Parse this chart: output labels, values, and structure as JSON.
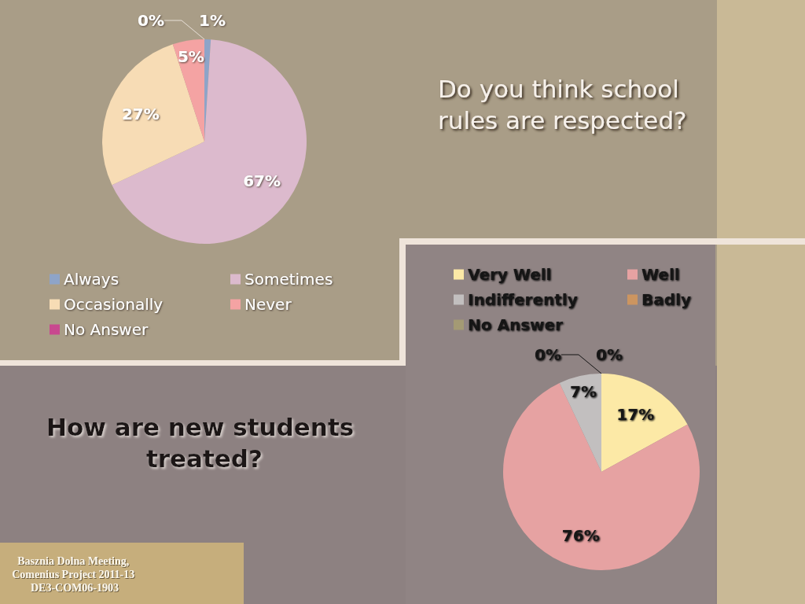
{
  "chart_data": [
    {
      "type": "pie",
      "title": "Do you think school rules are respected?",
      "categories": [
        "Always",
        "Sometimes",
        "Occasionally",
        "Never",
        "No Answer"
      ],
      "values": [
        1,
        67,
        27,
        5,
        0
      ],
      "colors": [
        "#8ea4c8",
        "#dcbacd",
        "#f7dcb5",
        "#f4a3a3",
        "#c8488f"
      ],
      "value_labels": [
        "1%",
        "67%",
        "27%",
        "5%",
        "0%"
      ],
      "legend": "bottom"
    },
    {
      "type": "pie",
      "title": "How are new students treated?",
      "categories": [
        "Very Well",
        "Well",
        "Indifferently",
        "Badly",
        "No Answer"
      ],
      "values": [
        17,
        76,
        7,
        0,
        0
      ],
      "colors": [
        "#fce9a6",
        "#e6a2a2",
        "#c2bfbf",
        "#cc9560",
        "#a49a74"
      ],
      "value_labels": [
        "17%",
        "76%",
        "7%",
        "0%",
        "0%"
      ],
      "legend": "top",
      "annotations": [
        "Basznia Dolna Meeting, Comenius Project 2011-13 DE3-COM06-1903"
      ]
    }
  ]
}
